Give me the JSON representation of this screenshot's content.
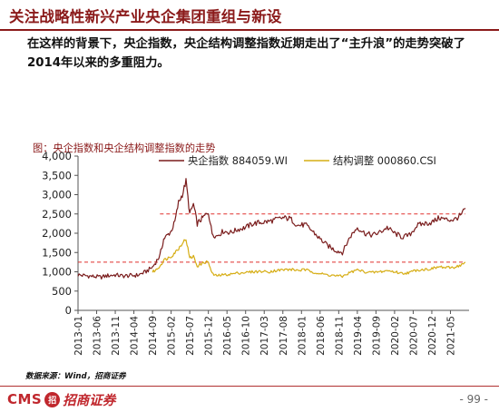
{
  "header": {
    "title": "关注战略性新兴产业央企集团重组与新设",
    "paragraph": "在这样的背景下，央企指数，央企结构调整指数近期走出了“主升浪”的走势突破了2014年以来的多重阻力。"
  },
  "figure": {
    "caption": "图：央企指数和央企结构调整指数的走势",
    "source": "数据来源：Wind，招商证券"
  },
  "footer": {
    "logo_text": "CMS",
    "logo_mark": "招",
    "logo_cn": "招商证券",
    "page_number": "- 99 -"
  },
  "colors": {
    "series1": "#7a1c1c",
    "series2": "#d6ad14",
    "reference": "#e0312e",
    "accent": "#8b1a1a"
  },
  "chart_data": {
    "type": "line",
    "title": "",
    "xlabel": "",
    "ylabel": "",
    "ylim": [
      0,
      4000
    ],
    "yticks": [
      "0",
      "500",
      "1,000",
      "1,500",
      "2,000",
      "2,500",
      "3,000",
      "3,500",
      "4,000"
    ],
    "xticks": [
      "2013-01",
      "2013-06",
      "2013-11",
      "2014-04",
      "2014-09",
      "2015-02",
      "2015-07",
      "2015-12",
      "2016-05",
      "2016-10",
      "2017-03",
      "2017-08",
      "2018-01",
      "2018-06",
      "2018-11",
      "2019-04",
      "2019-09",
      "2020-02",
      "2020-07",
      "2020-12",
      "2021-05"
    ],
    "grid": false,
    "legend": "top",
    "reference_lines": [
      2500,
      1250
    ],
    "series": [
      {
        "name": "央企指数 884059.WI",
        "points": [
          [
            "2013-01",
            920
          ],
          [
            "2013-03",
            900
          ],
          [
            "2013-05",
            880
          ],
          [
            "2013-07",
            860
          ],
          [
            "2013-09",
            900
          ],
          [
            "2013-11",
            920
          ],
          [
            "2014-01",
            890
          ],
          [
            "2014-03",
            900
          ],
          [
            "2014-05",
            910
          ],
          [
            "2014-07",
            990
          ],
          [
            "2014-09",
            1120
          ],
          [
            "2014-11",
            1420
          ],
          [
            "2014-12",
            1850
          ],
          [
            "2015-01",
            1950
          ],
          [
            "2015-02",
            2050
          ],
          [
            "2015-03",
            2300
          ],
          [
            "2015-04",
            2800
          ],
          [
            "2015-05",
            3000
          ],
          [
            "2015-06",
            3350
          ],
          [
            "2015-07",
            2500
          ],
          [
            "2015-08",
            2750
          ],
          [
            "2015-09",
            2250
          ],
          [
            "2015-10",
            2350
          ],
          [
            "2015-11",
            2450
          ],
          [
            "2015-12",
            2550
          ],
          [
            "2016-01",
            2000
          ],
          [
            "2016-02",
            1920
          ],
          [
            "2016-04",
            2050
          ],
          [
            "2016-06",
            2020
          ],
          [
            "2016-08",
            2100
          ],
          [
            "2016-10",
            2150
          ],
          [
            "2016-12",
            2250
          ],
          [
            "2017-02",
            2280
          ],
          [
            "2017-04",
            2300
          ],
          [
            "2017-06",
            2350
          ],
          [
            "2017-08",
            2400
          ],
          [
            "2017-10",
            2380
          ],
          [
            "2017-12",
            2200
          ],
          [
            "2018-02",
            2220
          ],
          [
            "2018-04",
            2050
          ],
          [
            "2018-06",
            1850
          ],
          [
            "2018-08",
            1680
          ],
          [
            "2018-10",
            1560
          ],
          [
            "2018-12",
            1500
          ],
          [
            "2019-02",
            1900
          ],
          [
            "2019-04",
            2150
          ],
          [
            "2019-06",
            2000
          ],
          [
            "2019-08",
            1950
          ],
          [
            "2019-10",
            2020
          ],
          [
            "2019-12",
            2150
          ],
          [
            "2020-02",
            2000
          ],
          [
            "2020-04",
            1900
          ],
          [
            "2020-06",
            1950
          ],
          [
            "2020-08",
            2200
          ],
          [
            "2020-10",
            2250
          ],
          [
            "2020-12",
            2280
          ],
          [
            "2021-02",
            2400
          ],
          [
            "2021-04",
            2350
          ],
          [
            "2021-06",
            2350
          ],
          [
            "2021-08",
            2480
          ],
          [
            "2021-09",
            2650
          ]
        ]
      },
      {
        "name": "结构调整 000860.CSI",
        "points": [
          [
            "2014-09",
            1000
          ],
          [
            "2014-10",
            1050
          ],
          [
            "2014-11",
            1150
          ],
          [
            "2014-12",
            1300
          ],
          [
            "2015-01",
            1350
          ],
          [
            "2015-02",
            1400
          ],
          [
            "2015-03",
            1500
          ],
          [
            "2015-04",
            1600
          ],
          [
            "2015-05",
            1750
          ],
          [
            "2015-06",
            1850
          ],
          [
            "2015-07",
            1350
          ],
          [
            "2015-08",
            1400
          ],
          [
            "2015-09",
            1150
          ],
          [
            "2015-10",
            1200
          ],
          [
            "2015-11",
            1250
          ],
          [
            "2015-12",
            1250
          ],
          [
            "2016-01",
            950
          ],
          [
            "2016-02",
            900
          ],
          [
            "2016-04",
            920
          ],
          [
            "2016-06",
            940
          ],
          [
            "2016-08",
            970
          ],
          [
            "2016-10",
            980
          ],
          [
            "2016-12",
            1000
          ],
          [
            "2017-02",
            1010
          ],
          [
            "2017-04",
            1000
          ],
          [
            "2017-06",
            1030
          ],
          [
            "2017-08",
            1050
          ],
          [
            "2017-10",
            1060
          ],
          [
            "2017-12",
            1040
          ],
          [
            "2018-02",
            1050
          ],
          [
            "2018-04",
            1000
          ],
          [
            "2018-06",
            950
          ],
          [
            "2018-08",
            920
          ],
          [
            "2018-10",
            900
          ],
          [
            "2018-12",
            880
          ],
          [
            "2019-02",
            980
          ],
          [
            "2019-04",
            1050
          ],
          [
            "2019-06",
            1000
          ],
          [
            "2019-08",
            980
          ],
          [
            "2019-10",
            1000
          ],
          [
            "2019-12",
            1030
          ],
          [
            "2020-02",
            1000
          ],
          [
            "2020-04",
            960
          ],
          [
            "2020-06",
            980
          ],
          [
            "2020-08",
            1050
          ],
          [
            "2020-10",
            1060
          ],
          [
            "2020-12",
            1080
          ],
          [
            "2021-02",
            1130
          ],
          [
            "2021-04",
            1100
          ],
          [
            "2021-06",
            1120
          ],
          [
            "2021-08",
            1180
          ],
          [
            "2021-09",
            1250
          ]
        ]
      }
    ]
  }
}
